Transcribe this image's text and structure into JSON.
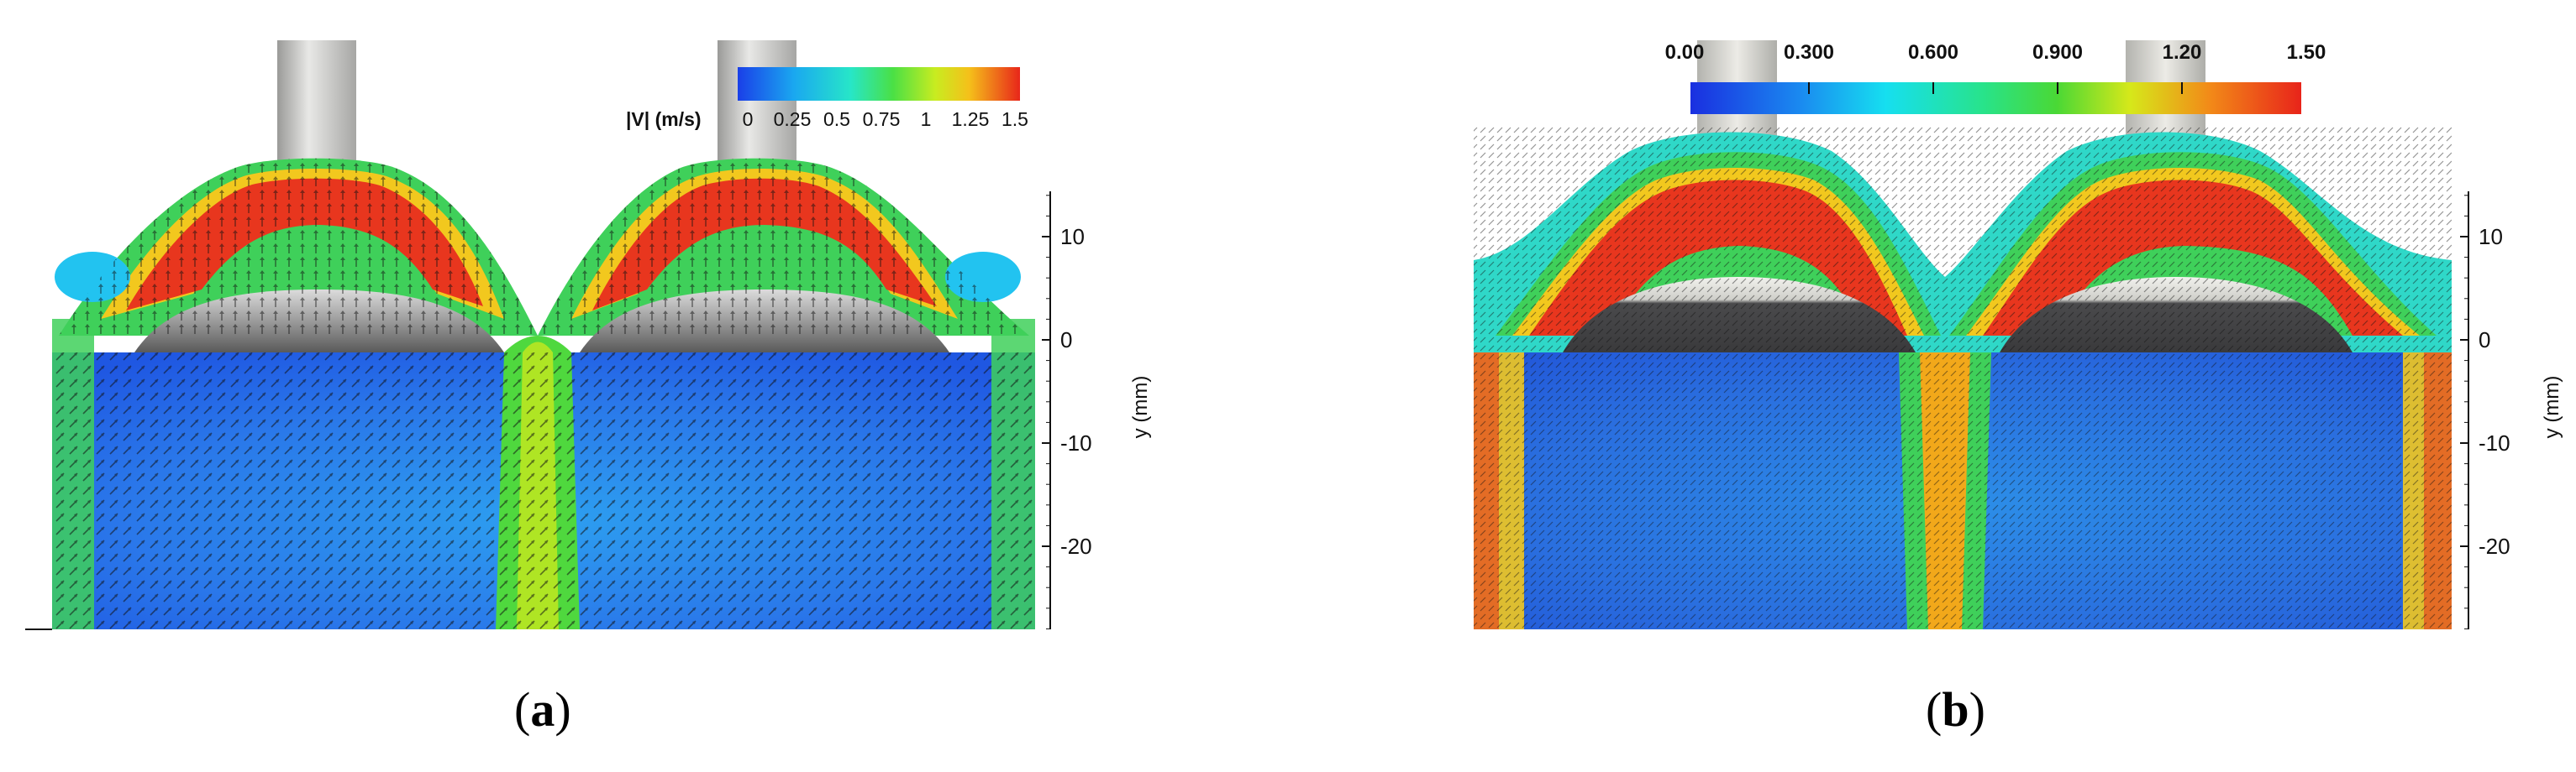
{
  "panel_a": {
    "caption": "a",
    "colorbar": {
      "label": "|V| (m/s)",
      "ticks": [
        "0",
        "0.25",
        "0.5",
        "0.75",
        "1",
        "1.25",
        "1.5"
      ],
      "min": 0,
      "max": 1.5
    },
    "y_axis": {
      "label": "y (mm)",
      "ticks": [
        "10",
        "0",
        "-10",
        "-20"
      ],
      "range_mm": [
        -28,
        15
      ]
    }
  },
  "panel_b": {
    "caption": "b",
    "colorbar": {
      "ticks": [
        "0.00",
        "0.300",
        "0.600",
        "0.900",
        "1.20",
        "1.50"
      ],
      "min": 0,
      "max": 1.5
    },
    "y_axis": {
      "label": "y (mm)",
      "ticks": [
        "10",
        "0",
        "-10",
        "-20"
      ],
      "range_mm": [
        -28,
        15
      ]
    }
  },
  "colors": {
    "low": "#1f4fe0",
    "mid_low": "#22c3f0",
    "mid": "#3ad94a",
    "mid_high": "#f2e21c",
    "high": "#e8361e",
    "valve": "#8a8a8a",
    "stem": "#c9c9c6"
  }
}
